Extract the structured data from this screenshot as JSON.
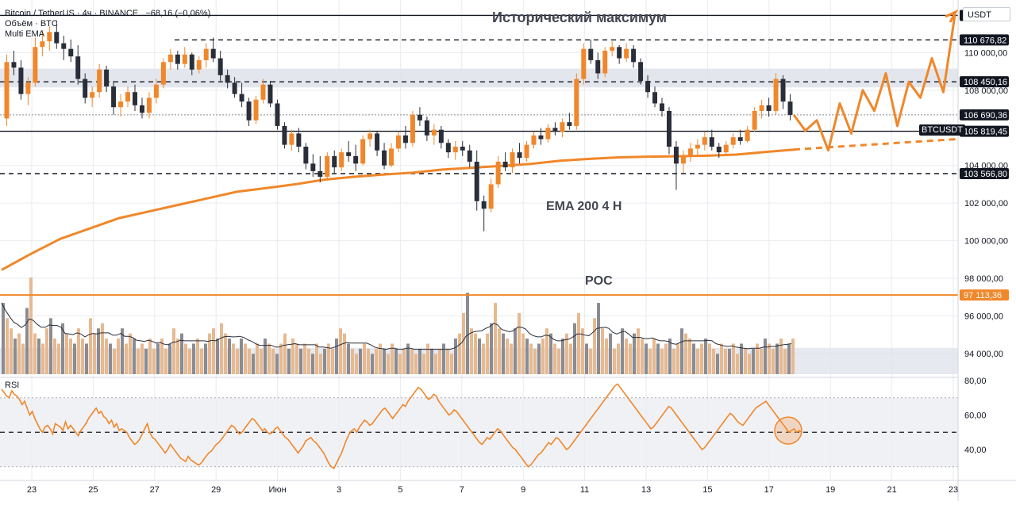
{
  "header": {
    "symbol": "Bitcoin / TetherUS · 4ч · BINANCE",
    "change": "−68,16 (−0,06%)",
    "volume_label": "Объём · BTC",
    "indicator_label": "Multi EMA"
  },
  "currency": "USDT",
  "annotations": {
    "title": "Исторический максимум",
    "ema": "EMA 200 4 H",
    "poc": "POC"
  },
  "ticker_tag": "BTCUSDT",
  "rsi_label": "RSI",
  "colors": {
    "accent": "#f0872a",
    "bear": "#2a2e39",
    "bull": "#f0872a",
    "grid": "#e9ebf0",
    "zone": "#e0e3eb"
  },
  "chart_data": {
    "type": "candlestick",
    "x_labels": [
      "23",
      "25",
      "27",
      "29",
      "Июн",
      "3",
      "5",
      "7",
      "9",
      "11",
      "13",
      "15",
      "17",
      "19",
      "21",
      "23"
    ],
    "y_ticks": [
      "110 000,00",
      "108 000,00",
      "104 000,00",
      "102 000,00",
      "100 000,00",
      "98 000,00",
      "96 000,00",
      "94 000,00"
    ],
    "ylim": [
      92900,
      112800
    ],
    "price_levels": [
      {
        "value": 111980,
        "label": "111 980,00",
        "style": "solid"
      },
      {
        "value": 110676.82,
        "label": "110 676,82",
        "style": "dashed"
      },
      {
        "value": 108450.16,
        "label": "108 450,16",
        "style": "dashed"
      },
      {
        "value": 106690.36,
        "label": "106 690,36",
        "style": "current"
      },
      {
        "value": 105819.45,
        "label": "105 819,45",
        "style": "solid"
      },
      {
        "value": 103566.8,
        "label": "103 566,80",
        "style": "dashed"
      },
      {
        "value": 97113.36,
        "label": "97 113,36",
        "style": "poc"
      }
    ],
    "resistance_zone": [
      108150,
      109150
    ],
    "ema_200": [
      98450,
      99300,
      100100,
      100650,
      101200,
      101550,
      101900,
      102250,
      102600,
      102800,
      103000,
      103250,
      103400,
      103520,
      103620,
      103780,
      103880,
      103980,
      104080,
      104250,
      104350,
      104430,
      104470,
      104490,
      104520,
      104580,
      104720,
      104850
    ],
    "projection": [
      106690,
      105850,
      106400,
      104800,
      107300,
      105700,
      108000,
      106900,
      108900,
      106100,
      108450,
      107600,
      109700,
      107900,
      112000
    ],
    "rsi_ticks": [
      "80,00",
      "60,00",
      "40,00"
    ],
    "rsi_levels": [
      30,
      50,
      70
    ],
    "rsi": [
      75,
      73,
      71,
      70,
      74,
      72,
      71,
      69,
      66,
      68,
      64,
      60,
      62,
      58,
      55,
      52,
      50,
      53,
      54,
      52,
      49,
      55,
      54,
      53,
      51,
      56,
      52,
      54,
      52,
      50,
      48,
      51,
      53,
      55,
      58,
      60,
      62,
      64,
      61,
      62,
      59,
      58,
      55,
      57,
      53,
      55,
      51,
      52,
      51,
      50,
      47,
      45,
      43,
      44,
      46,
      49,
      52,
      55,
      50,
      47,
      46,
      44,
      42,
      40,
      38,
      40,
      43,
      41,
      39,
      37,
      35,
      34,
      33,
      36,
      34,
      33,
      32,
      31,
      32,
      34,
      36,
      38,
      39,
      41,
      43,
      44,
      46,
      48,
      50,
      52,
      54,
      53,
      51,
      49,
      50,
      52,
      54,
      56,
      58,
      57,
      55,
      53,
      51,
      52,
      50,
      49,
      50,
      52,
      53,
      51,
      49,
      47,
      46,
      44,
      42,
      40,
      38,
      40,
      42,
      45,
      46,
      47,
      45,
      44,
      42,
      40,
      38,
      35,
      32,
      30,
      29,
      32,
      35,
      38,
      42,
      46,
      49,
      51,
      52,
      50,
      53,
      55,
      57,
      56,
      54,
      55,
      57,
      59,
      61,
      63,
      64,
      62,
      60,
      58,
      60,
      62,
      64,
      66,
      65,
      68,
      70,
      72,
      74,
      76,
      75,
      73,
      71,
      69,
      70,
      72,
      71,
      68,
      66,
      64,
      62,
      60,
      61,
      63,
      62,
      60,
      58,
      56,
      54,
      52,
      50,
      48,
      46,
      44,
      43,
      45,
      47,
      46,
      48,
      50,
      52,
      51,
      49,
      47,
      45,
      43,
      41,
      40,
      38,
      36,
      34,
      32,
      30,
      31,
      33,
      35,
      37,
      38,
      40,
      42,
      44,
      43,
      45,
      47,
      46,
      44,
      42,
      40,
      41,
      43,
      45,
      47,
      49,
      51,
      53,
      55,
      57,
      59,
      61,
      63,
      65,
      67,
      69,
      71,
      73,
      75,
      77,
      78,
      76,
      74,
      72,
      70,
      68,
      66,
      64,
      62,
      60,
      58,
      56,
      54,
      52,
      53,
      55,
      57,
      59,
      61,
      63,
      65,
      64,
      62,
      60,
      58,
      56,
      54,
      52,
      50,
      48,
      46,
      44,
      42,
      40,
      41,
      43,
      45,
      47,
      49,
      51,
      53,
      55,
      57,
      59,
      61,
      60,
      58,
      56,
      55,
      54,
      56,
      58,
      60,
      62,
      64,
      65,
      66,
      67,
      68,
      66,
      64,
      62,
      60,
      58,
      56,
      54,
      52,
      50,
      51,
      52,
      50,
      51,
      50
    ],
    "volume": [
      14,
      11,
      9,
      7,
      8,
      6,
      13,
      19,
      8,
      7,
      6,
      9,
      11,
      7,
      6,
      10,
      8,
      7,
      6,
      9,
      7,
      6,
      11,
      8,
      9,
      10,
      7,
      6,
      5,
      7,
      9,
      6,
      8,
      7,
      5,
      6,
      5,
      7,
      5,
      6,
      7,
      5,
      6,
      9,
      7,
      8,
      6,
      5,
      6,
      7,
      5,
      6,
      8,
      9,
      7,
      10,
      8,
      7,
      6,
      5,
      7,
      6,
      5,
      4,
      6,
      5,
      7,
      6,
      5,
      4,
      6,
      8,
      5,
      7,
      6,
      5,
      6,
      5,
      4,
      6,
      4,
      5,
      6,
      5,
      7,
      9,
      8,
      6,
      5,
      4,
      5,
      6,
      5,
      4,
      5,
      6,
      5,
      4,
      6,
      5,
      4,
      5,
      6,
      5,
      4,
      5,
      4,
      6,
      5,
      4,
      5,
      6,
      5,
      4,
      7,
      8,
      12,
      16,
      9,
      8,
      7,
      6,
      8,
      10,
      14,
      9,
      8,
      7,
      6,
      9,
      12,
      8,
      7,
      6,
      5,
      6,
      7,
      9,
      8,
      6,
      5,
      7,
      8,
      6,
      10,
      12,
      9,
      6,
      5,
      11,
      14,
      9,
      7,
      8,
      5,
      6,
      9,
      7,
      6,
      8,
      9,
      7,
      6,
      5,
      7,
      6,
      5,
      6,
      7,
      5,
      6,
      9,
      8,
      7,
      6,
      5,
      6,
      7,
      6,
      5,
      4,
      6,
      5,
      5,
      6,
      4,
      6,
      5,
      4,
      5,
      6,
      5,
      7,
      6,
      5,
      6,
      7,
      5,
      6,
      7
    ],
    "candles": [
      [
        106500,
        109900,
        106100,
        109500
      ],
      [
        109500,
        110100,
        108800,
        109200
      ],
      [
        109200,
        109600,
        107500,
        107800
      ],
      [
        107800,
        108700,
        107200,
        108400
      ],
      [
        108400,
        110800,
        108200,
        110300
      ],
      [
        110300,
        111200,
        109800,
        110600
      ],
      [
        110600,
        111400,
        110100,
        111100
      ],
      [
        111100,
        111700,
        110200,
        110500
      ],
      [
        110500,
        110900,
        109600,
        110200
      ],
      [
        110200,
        110700,
        109500,
        109800
      ],
      [
        109800,
        110400,
        108300,
        108600
      ],
      [
        108600,
        108900,
        107300,
        107600
      ],
      [
        107600,
        108200,
        107100,
        107900
      ],
      [
        107900,
        109400,
        107600,
        109100
      ],
      [
        109100,
        109300,
        107900,
        108200
      ],
      [
        108200,
        108500,
        106700,
        107100
      ],
      [
        107100,
        107800,
        106600,
        107400
      ],
      [
        107400,
        108200,
        107100,
        107900
      ],
      [
        107900,
        108300,
        106900,
        107200
      ],
      [
        107200,
        107600,
        106500,
        106800
      ],
      [
        106800,
        107900,
        106500,
        107600
      ],
      [
        107600,
        108600,
        107300,
        108300
      ],
      [
        108300,
        109700,
        108100,
        109500
      ],
      [
        109500,
        110200,
        109100,
        109900
      ],
      [
        109900,
        110100,
        109100,
        109400
      ],
      [
        109400,
        110300,
        109200,
        109900
      ],
      [
        109900,
        110000,
        108800,
        109100
      ],
      [
        109100,
        109800,
        108900,
        109600
      ],
      [
        109600,
        110500,
        109200,
        110200
      ],
      [
        110200,
        110800,
        109500,
        109700
      ],
      [
        109700,
        110100,
        108500,
        108800
      ],
      [
        108800,
        109100,
        108100,
        108400
      ],
      [
        108400,
        108700,
        107600,
        107800
      ],
      [
        107800,
        108400,
        107100,
        107400
      ],
      [
        107400,
        107600,
        106100,
        106400
      ],
      [
        106400,
        107700,
        106200,
        107500
      ],
      [
        107500,
        108600,
        107300,
        108300
      ],
      [
        108300,
        108500,
        107100,
        107300
      ],
      [
        107300,
        107500,
        105900,
        106100
      ],
      [
        106100,
        106300,
        104900,
        105100
      ],
      [
        105100,
        105900,
        104800,
        105700
      ],
      [
        105700,
        106000,
        104700,
        105000
      ],
      [
        105000,
        105200,
        103800,
        104100
      ],
      [
        104100,
        104600,
        103400,
        103700
      ],
      [
        103700,
        104500,
        103100,
        103400
      ],
      [
        103400,
        104700,
        103200,
        104500
      ],
      [
        104500,
        104800,
        103600,
        103900
      ],
      [
        103900,
        104900,
        103700,
        104700
      ],
      [
        104700,
        105300,
        104200,
        104500
      ],
      [
        104500,
        105100,
        103700,
        104100
      ],
      [
        104100,
        105600,
        104000,
        105400
      ],
      [
        105400,
        105900,
        105000,
        105700
      ],
      [
        105700,
        105800,
        104500,
        104800
      ],
      [
        104800,
        105200,
        103800,
        104000
      ],
      [
        104000,
        105200,
        103900,
        104900
      ],
      [
        104900,
        105800,
        104700,
        105600
      ],
      [
        105600,
        106100,
        104900,
        105200
      ],
      [
        105200,
        106900,
        105000,
        106700
      ],
      [
        106700,
        107100,
        106100,
        106400
      ],
      [
        106400,
        106600,
        105300,
        105600
      ],
      [
        105600,
        106200,
        105100,
        105900
      ],
      [
        105900,
        106100,
        104900,
        105200
      ],
      [
        105200,
        105400,
        104400,
        104700
      ],
      [
        104700,
        105300,
        104300,
        105000
      ],
      [
        105000,
        105300,
        104500,
        104800
      ],
      [
        104800,
        105100,
        103900,
        104200
      ],
      [
        104200,
        104800,
        101600,
        102100
      ],
      [
        102100,
        102400,
        100500,
        101700
      ],
      [
        101700,
        103300,
        101500,
        103000
      ],
      [
        103000,
        104500,
        102800,
        104200
      ],
      [
        104200,
        104700,
        103700,
        103900
      ],
      [
        103900,
        104900,
        103600,
        104700
      ],
      [
        104700,
        105200,
        104100,
        104400
      ],
      [
        104400,
        105300,
        104200,
        105100
      ],
      [
        105100,
        105800,
        104900,
        105600
      ],
      [
        105600,
        106000,
        105100,
        105400
      ],
      [
        105400,
        106200,
        105200,
        106000
      ],
      [
        106000,
        106300,
        105600,
        105800
      ],
      [
        105800,
        106500,
        105500,
        106300
      ],
      [
        106300,
        106800,
        105900,
        106100
      ],
      [
        106100,
        108900,
        105900,
        108600
      ],
      [
        108600,
        110500,
        108300,
        110200
      ],
      [
        110200,
        110700,
        109400,
        109600
      ],
      [
        109600,
        110000,
        108600,
        108900
      ],
      [
        108900,
        110300,
        108700,
        110100
      ],
      [
        110100,
        110600,
        109800,
        110300
      ],
      [
        110300,
        110400,
        109400,
        109700
      ],
      [
        109700,
        110500,
        109500,
        110200
      ],
      [
        110200,
        110400,
        109200,
        109500
      ],
      [
        109500,
        109700,
        108300,
        108500
      ],
      [
        108500,
        108800,
        107600,
        107900
      ],
      [
        107900,
        108200,
        107100,
        107300
      ],
      [
        107300,
        107600,
        106600,
        106900
      ],
      [
        106900,
        107100,
        104600,
        105000
      ],
      [
        105000,
        105300,
        102700,
        104100
      ],
      [
        104100,
        104800,
        103600,
        104500
      ],
      [
        104500,
        105200,
        104200,
        104900
      ],
      [
        104900,
        105400,
        104500,
        105100
      ],
      [
        105100,
        105800,
        104800,
        105500
      ],
      [
        105500,
        105900,
        104800,
        105000
      ],
      [
        105000,
        105200,
        104400,
        104700
      ],
      [
        104700,
        105300,
        104500,
        105100
      ],
      [
        105100,
        105700,
        104900,
        105500
      ],
      [
        105500,
        105900,
        105100,
        105300
      ],
      [
        105300,
        106100,
        105200,
        105900
      ],
      [
        105900,
        107100,
        105800,
        106900
      ],
      [
        106900,
        107500,
        106500,
        107200
      ],
      [
        107200,
        107600,
        106600,
        106900
      ],
      [
        106900,
        108900,
        106700,
        108600
      ],
      [
        108600,
        108800,
        107000,
        107400
      ],
      [
        107400,
        107800,
        106400,
        106690
      ]
    ]
  }
}
